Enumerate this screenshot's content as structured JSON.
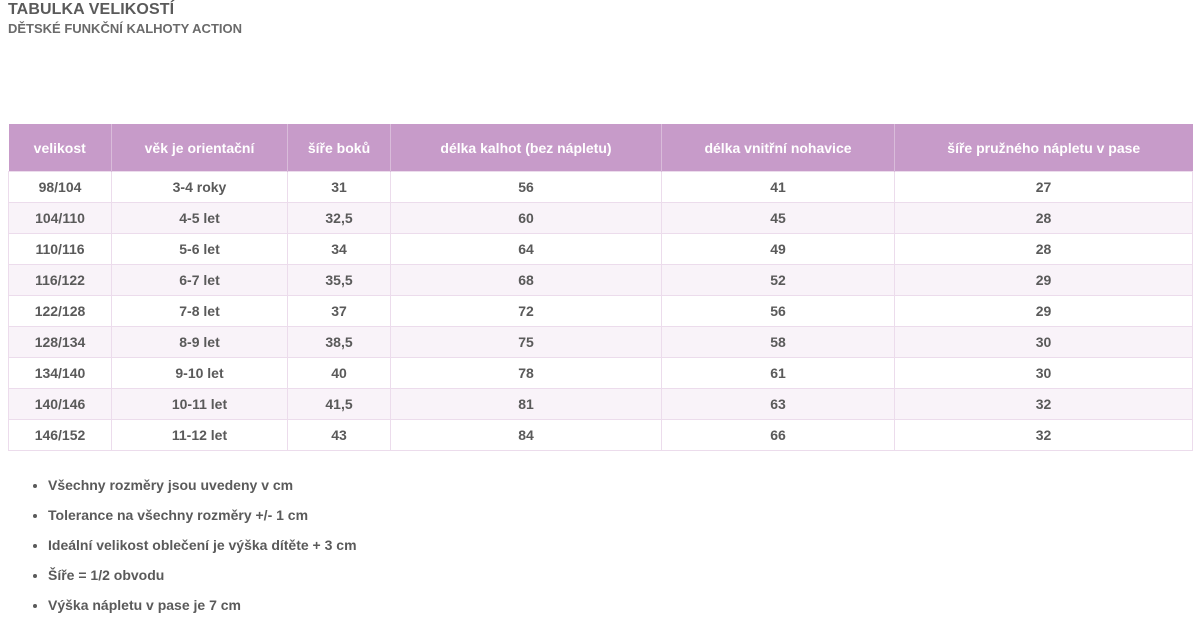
{
  "header": {
    "title": "TABULKA VELIKOSTÍ",
    "subtitle": "DĚTSKÉ FUNKČNÍ KALHOTY ACTION"
  },
  "table": {
    "columns": [
      "velikost",
      "věk je orientační",
      "šíře boků",
      "délka kalhot (bez nápletu)",
      "délka vnitřní nohavice",
      "šíře pružného nápletu v pase"
    ],
    "rows": [
      [
        "98/104",
        "3-4 roky",
        "31",
        "56",
        "41",
        "27"
      ],
      [
        "104/110",
        "4-5 let",
        "32,5",
        "60",
        "45",
        "28"
      ],
      [
        "110/116",
        "5-6 let",
        "34",
        "64",
        "49",
        "28"
      ],
      [
        "116/122",
        "6-7 let",
        "35,5",
        "68",
        "52",
        "29"
      ],
      [
        "122/128",
        "7-8 let",
        "37",
        "72",
        "56",
        "29"
      ],
      [
        "128/134",
        "8-9 let",
        "38,5",
        "75",
        "58",
        "30"
      ],
      [
        "134/140",
        "9-10 let",
        "40",
        "78",
        "61",
        "30"
      ],
      [
        "140/146",
        "10-11 let",
        "41,5",
        "81",
        "63",
        "32"
      ],
      [
        "146/152",
        "11-12 let",
        "43",
        "84",
        "66",
        "32"
      ]
    ]
  },
  "notes": [
    "Všechny rozměry jsou uvedeny v cm",
    "Tolerance na všechny rozměry +/- 1 cm",
    "Ideální velikost oblečení je výška dítěte + 3 cm",
    "Šíře = 1/2 obvodu",
    "Výška nápletu v pase je 7 cm"
  ],
  "colors": {
    "header_bg": "#c79bc9",
    "row_alt_bg": "#f9f3f9",
    "text": "#5a5a5a"
  }
}
